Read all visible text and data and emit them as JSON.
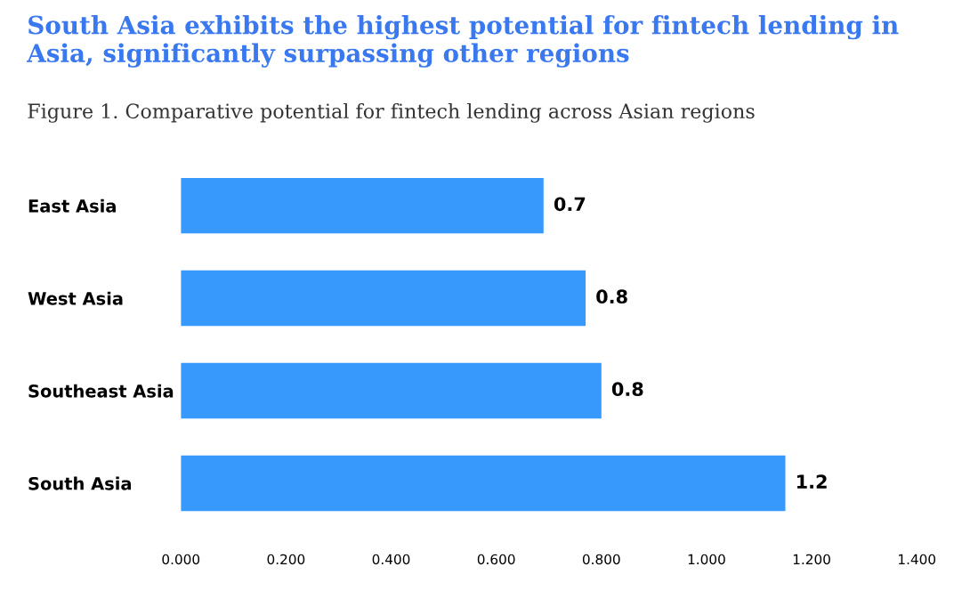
{
  "chart_data": {
    "type": "bar",
    "orientation": "horizontal",
    "title": "South Asia exhibits the highest potential for fintech lending in Asia, significantly surpassing other regions",
    "subtitle": "Figure 1. Comparative potential for fintech lending across Asian regions",
    "categories": [
      "East Asia",
      "West Asia",
      "Southeast Asia",
      "South Asia"
    ],
    "values": [
      0.69,
      0.77,
      0.8,
      1.15
    ],
    "value_labels": [
      "0.7",
      "0.8",
      "0.8",
      "1.2"
    ],
    "color": "#3799fc",
    "xlim": [
      0,
      1.4
    ],
    "xticks": [
      {
        "value": 0,
        "label": "0.000"
      },
      {
        "value": 0.2,
        "label": "0.200"
      },
      {
        "value": 0.4,
        "label": "0.400"
      },
      {
        "value": 0.6,
        "label": "0.600"
      },
      {
        "value": 0.8,
        "label": "0.800"
      },
      {
        "value": 1.0,
        "label": "1.000"
      },
      {
        "value": 1.2,
        "label": "1.200"
      },
      {
        "value": 1.4,
        "label": "1.400"
      }
    ],
    "grid": false,
    "legend": false
  }
}
